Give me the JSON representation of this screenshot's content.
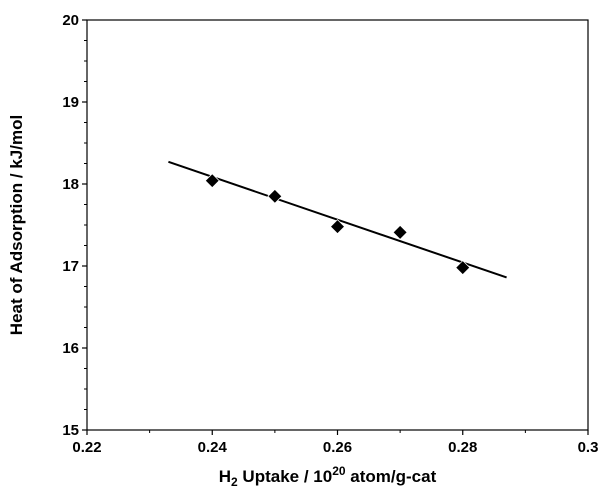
{
  "chart_data": {
    "type": "scatter",
    "xlabel_parts": [
      "H",
      "2",
      " Uptake / 10",
      "20",
      " atom/g-cat"
    ],
    "ylabel": "Heat of Adsorption / kJ/mol",
    "xlim": [
      0.22,
      0.3
    ],
    "ylim": [
      15,
      20
    ],
    "x_ticks": [
      0.22,
      0.24,
      0.26,
      0.28,
      0.3
    ],
    "x_tick_labels": [
      "0.22",
      "0.24",
      "0.26",
      "0.28",
      "0.3"
    ],
    "y_ticks": [
      15,
      16,
      17,
      18,
      19,
      20
    ],
    "y_tick_labels": [
      "15",
      "16",
      "17",
      "18",
      "19",
      "20"
    ],
    "grid": false,
    "series": [
      {
        "marker": "diamond",
        "color": "#000000",
        "x": [
          0.24,
          0.25,
          0.26,
          0.27,
          0.28
        ],
        "y": [
          18.04,
          17.85,
          17.48,
          17.41,
          16.98
        ]
      }
    ],
    "trendline": {
      "color": "#000000",
      "x": [
        0.233,
        0.287
      ],
      "y": [
        18.27,
        16.86
      ]
    }
  }
}
